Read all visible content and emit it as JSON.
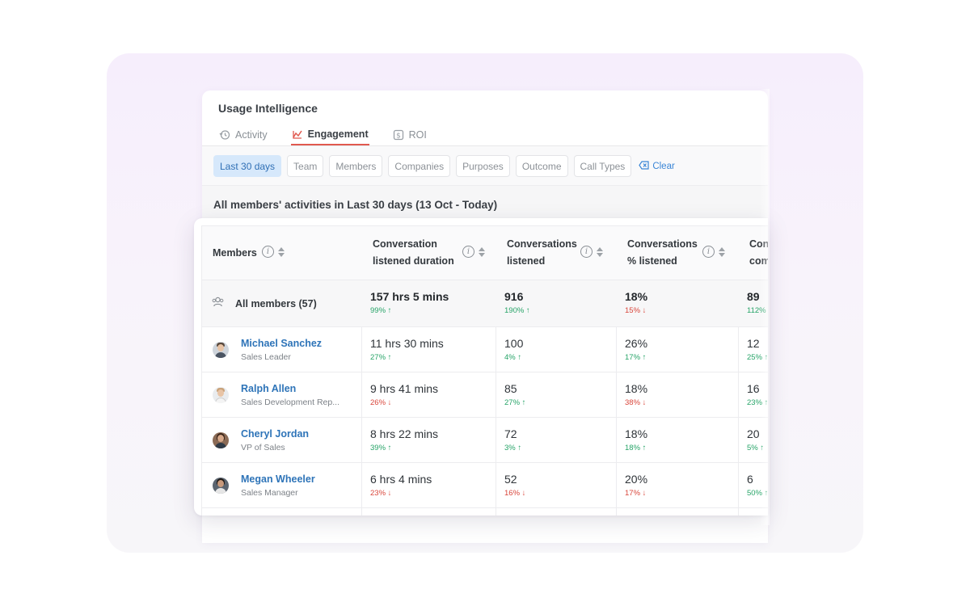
{
  "app": {
    "title": "Usage Intelligence",
    "tabs": [
      {
        "label": "Activity",
        "icon": "history-icon",
        "active": false
      },
      {
        "label": "Engagement",
        "icon": "engagement-icon",
        "active": true
      },
      {
        "label": "ROI",
        "icon": "dollar-icon",
        "active": false
      }
    ]
  },
  "filters": {
    "chips": [
      {
        "label": "Last 30 days",
        "selected": true
      },
      {
        "label": "Team",
        "selected": false
      },
      {
        "label": "Members",
        "selected": false
      },
      {
        "label": "Companies",
        "selected": false
      },
      {
        "label": "Purposes",
        "selected": false
      },
      {
        "label": "Outcome",
        "selected": false
      },
      {
        "label": "Call Types",
        "selected": false
      }
    ],
    "clear_label": "Clear"
  },
  "section_title": "All members' activities in Last 30 days (13 Oct - Today)",
  "table": {
    "columns": [
      {
        "label": "Members"
      },
      {
        "label_line1": "Conversation",
        "label_line2": "listened duration"
      },
      {
        "label_line1": "Conversations",
        "label_line2": "listened"
      },
      {
        "label_line1": "Conversations",
        "label_line2": "% listened"
      },
      {
        "label_line1": "Con",
        "label_line2": "com"
      }
    ],
    "all_members": {
      "label": "All members (57)",
      "values": [
        {
          "value": "157 hrs 5 mins",
          "delta": "99% ↑",
          "trend": "up"
        },
        {
          "value": "916",
          "delta": "190% ↑",
          "trend": "up"
        },
        {
          "value": "18%",
          "delta": "15% ↓",
          "trend": "down"
        },
        {
          "value": "89",
          "delta": "112% ↑",
          "trend": "up"
        }
      ]
    },
    "rows": [
      {
        "name": "Michael Sanchez",
        "role": "Sales Leader",
        "values": [
          {
            "value": "11 hrs 30 mins",
            "delta": "27% ↑",
            "trend": "up"
          },
          {
            "value": "100",
            "delta": "4% ↑",
            "trend": "up"
          },
          {
            "value": "26%",
            "delta": "17% ↑",
            "trend": "up"
          },
          {
            "value": "12",
            "delta": "25% ↑",
            "trend": "up"
          }
        ]
      },
      {
        "name": "Ralph Allen",
        "role": "Sales Development Rep...",
        "values": [
          {
            "value": "9 hrs 41 mins",
            "delta": "26% ↓",
            "trend": "down"
          },
          {
            "value": "85",
            "delta": "27% ↑",
            "trend": "up"
          },
          {
            "value": "18%",
            "delta": "38% ↓",
            "trend": "down"
          },
          {
            "value": "16",
            "delta": "23% ↑",
            "trend": "up"
          }
        ]
      },
      {
        "name": "Cheryl Jordan",
        "role": "VP of Sales",
        "values": [
          {
            "value": "8 hrs 22 mins",
            "delta": "39% ↑",
            "trend": "up"
          },
          {
            "value": "72",
            "delta": "3% ↑",
            "trend": "up"
          },
          {
            "value": "18%",
            "delta": "18% ↑",
            "trend": "up"
          },
          {
            "value": "20",
            "delta": "5% ↑",
            "trend": "up"
          }
        ]
      },
      {
        "name": "Megan Wheeler",
        "role": "Sales Manager",
        "values": [
          {
            "value": "6 hrs 4 mins",
            "delta": "23% ↓",
            "trend": "down"
          },
          {
            "value": "52",
            "delta": "16% ↓",
            "trend": "down"
          },
          {
            "value": "20%",
            "delta": "17% ↓",
            "trend": "down"
          },
          {
            "value": "6",
            "delta": "50% ↑",
            "trend": "up"
          }
        ]
      }
    ]
  },
  "colors": {
    "accent_tab": "#e0594f",
    "link": "#2e74b8",
    "trend_up": "#27a468",
    "trend_down": "#d9463b",
    "chip_selected_bg": "#d6e8fb"
  }
}
